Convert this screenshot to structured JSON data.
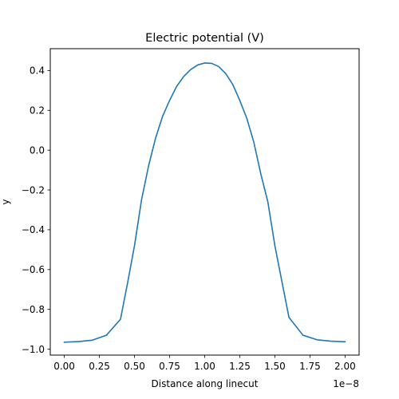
{
  "chart_data": {
    "type": "line",
    "title": "Electric potential (V)",
    "xlabel": "Distance along linecut",
    "ylabel": "y",
    "x_offset_text": "1e−8",
    "x_scale_exponent": -8,
    "xlim": [
      -0.1,
      2.1
    ],
    "ylim": [
      -1.03,
      0.51
    ],
    "x_ticks": [
      0.0,
      0.25,
      0.5,
      0.75,
      1.0,
      1.25,
      1.5,
      1.75,
      2.0
    ],
    "x_tick_labels": [
      "0.00",
      "0.25",
      "0.50",
      "0.75",
      "1.00",
      "1.25",
      "1.50",
      "1.75",
      "2.00"
    ],
    "y_ticks": [
      -1.0,
      -0.8,
      -0.6,
      -0.4,
      -0.2,
      0.0,
      0.2,
      0.4
    ],
    "y_tick_labels": [
      "−1.0",
      "−0.8",
      "−0.6",
      "−0.4",
      "−0.2",
      "0.0",
      "0.2",
      "0.4"
    ],
    "grid": false,
    "line_color": "#1f77b4",
    "series": [
      {
        "x": [
          0.0,
          0.1,
          0.2,
          0.3,
          0.4,
          0.45,
          0.5,
          0.55,
          0.6,
          0.65,
          0.7,
          0.75,
          0.8,
          0.85,
          0.9,
          0.95,
          1.0,
          1.05,
          1.1,
          1.15,
          1.2,
          1.25,
          1.3,
          1.35,
          1.4,
          1.45,
          1.5,
          1.55,
          1.6,
          1.7,
          1.8,
          1.9,
          2.0
        ],
        "y": [
          -0.965,
          -0.962,
          -0.955,
          -0.93,
          -0.85,
          -0.67,
          -0.48,
          -0.25,
          -0.08,
          0.06,
          0.17,
          0.25,
          0.32,
          0.37,
          0.405,
          0.428,
          0.438,
          0.436,
          0.42,
          0.385,
          0.33,
          0.25,
          0.16,
          0.04,
          -0.12,
          -0.26,
          -0.48,
          -0.66,
          -0.84,
          -0.93,
          -0.953,
          -0.96,
          -0.963
        ]
      }
    ]
  }
}
